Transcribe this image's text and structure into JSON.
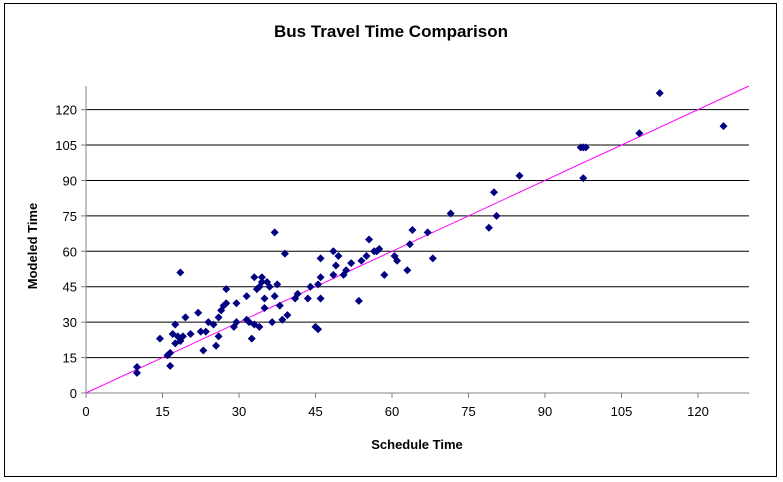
{
  "chart_data": {
    "type": "scatter",
    "title": "Bus Travel Time Comparison",
    "xlabel": "Schedule Time",
    "ylabel": "Modeled Time",
    "xlim": [
      0,
      130
    ],
    "ylim": [
      0,
      130
    ],
    "xticks": [
      0,
      15,
      30,
      45,
      60,
      75,
      90,
      105,
      120
    ],
    "yticks": [
      0,
      15,
      30,
      45,
      60,
      75,
      90,
      105,
      120
    ],
    "grid": "horizontal",
    "legend": "none",
    "marker_color": "#000080",
    "trendline_color": "#ff00ff",
    "trendline": [
      [
        0,
        0
      ],
      [
        130,
        130
      ]
    ],
    "points": [
      [
        10,
        11
      ],
      [
        10,
        8.5
      ],
      [
        14.5,
        23
      ],
      [
        16,
        16
      ],
      [
        16.5,
        17
      ],
      [
        16.5,
        11.5
      ],
      [
        17,
        25
      ],
      [
        17.5,
        21
      ],
      [
        17.5,
        29
      ],
      [
        18,
        24
      ],
      [
        18.5,
        51
      ],
      [
        18.5,
        22
      ],
      [
        19,
        24
      ],
      [
        19.5,
        32
      ],
      [
        20.5,
        25
      ],
      [
        22,
        34
      ],
      [
        22.5,
        26
      ],
      [
        23,
        18
      ],
      [
        23.5,
        26
      ],
      [
        24,
        30
      ],
      [
        25,
        29
      ],
      [
        25.5,
        20
      ],
      [
        26,
        24
      ],
      [
        26,
        32
      ],
      [
        26.5,
        35
      ],
      [
        27,
        37
      ],
      [
        27.5,
        38
      ],
      [
        27.5,
        44
      ],
      [
        29,
        28
      ],
      [
        29.5,
        30
      ],
      [
        29.5,
        38
      ],
      [
        31.5,
        41
      ],
      [
        31.5,
        31
      ],
      [
        32,
        30
      ],
      [
        32.5,
        23
      ],
      [
        33,
        29
      ],
      [
        33,
        49
      ],
      [
        33.5,
        44
      ],
      [
        34,
        45
      ],
      [
        34,
        28
      ],
      [
        34.5,
        47
      ],
      [
        34.5,
        49
      ],
      [
        35,
        36
      ],
      [
        35,
        40
      ],
      [
        35.5,
        47
      ],
      [
        36,
        45
      ],
      [
        36.5,
        30
      ],
      [
        37,
        41
      ],
      [
        37,
        68
      ],
      [
        37.5,
        46
      ],
      [
        38,
        37
      ],
      [
        38.5,
        31
      ],
      [
        39,
        59
      ],
      [
        39.5,
        33
      ],
      [
        41,
        40
      ],
      [
        41.5,
        42
      ],
      [
        43.5,
        40
      ],
      [
        44,
        45
      ],
      [
        45,
        28
      ],
      [
        45.5,
        46
      ],
      [
        45.5,
        27
      ],
      [
        46,
        40
      ],
      [
        46,
        49
      ],
      [
        46,
        57
      ],
      [
        48.5,
        50
      ],
      [
        48.5,
        60
      ],
      [
        49,
        54
      ],
      [
        49.5,
        58
      ],
      [
        50.5,
        50
      ],
      [
        51,
        52
      ],
      [
        52,
        55
      ],
      [
        53.5,
        39
      ],
      [
        54,
        56
      ],
      [
        55,
        58
      ],
      [
        55.5,
        65
      ],
      [
        56.5,
        60
      ],
      [
        57,
        60
      ],
      [
        57.5,
        61
      ],
      [
        58.5,
        50
      ],
      [
        60.5,
        58
      ],
      [
        61,
        56
      ],
      [
        63,
        52
      ],
      [
        63.5,
        63
      ],
      [
        64,
        69
      ],
      [
        67,
        68
      ],
      [
        68,
        57
      ],
      [
        71.5,
        76
      ],
      [
        79,
        70
      ],
      [
        80,
        85
      ],
      [
        80.5,
        75
      ],
      [
        85,
        92
      ],
      [
        97,
        104
      ],
      [
        97.5,
        104
      ],
      [
        97.5,
        91
      ],
      [
        98,
        104
      ],
      [
        108.5,
        110
      ],
      [
        112.5,
        127
      ],
      [
        125,
        113
      ]
    ]
  }
}
